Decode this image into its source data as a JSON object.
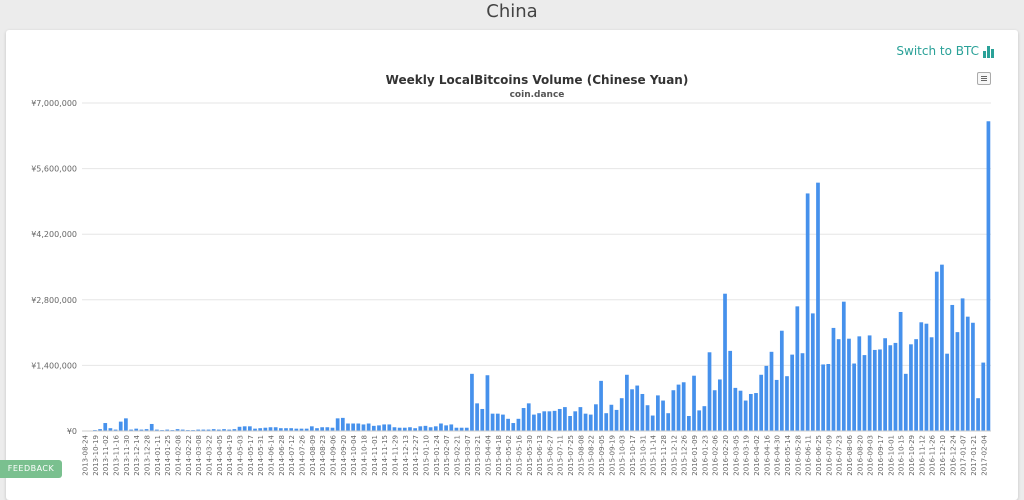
{
  "page": {
    "title": "China",
    "switch_label": "Switch to BTC",
    "feedback_label": "FEEDBACK"
  },
  "colors": {
    "bar": "#4691ec",
    "grid": "#e6e6e6",
    "accent": "#2aa198"
  },
  "icons": {
    "switch": "bar-chart-icon",
    "menu": "hamburger-menu-icon"
  },
  "chart_data": {
    "type": "bar",
    "title": "Weekly LocalBitcoins Volume (Chinese Yuan)",
    "subtitle": "coin.dance",
    "xlabel": "",
    "ylabel": "",
    "ylim": [
      0,
      7000000
    ],
    "y_ticks": [
      {
        "value": 0,
        "label": "¥0"
      },
      {
        "value": 1400000,
        "label": "¥1,400,000"
      },
      {
        "value": 2800000,
        "label": "¥2,800,000"
      },
      {
        "value": 4200000,
        "label": "¥4,200,000"
      },
      {
        "value": 5600000,
        "label": "¥5,600,000"
      },
      {
        "value": 7000000,
        "label": "¥7,000,000"
      }
    ],
    "grid": true,
    "legend": "none",
    "x_tick_every": 2,
    "categories": [
      "2013-08-24",
      "2013-10-12",
      "2013-10-19",
      "2013-10-26",
      "2013-11-02",
      "2013-11-09",
      "2013-11-16",
      "2013-11-23",
      "2013-11-30",
      "2013-12-07",
      "2013-12-14",
      "2013-12-21",
      "2013-12-28",
      "2014-01-04",
      "2014-01-11",
      "2014-01-18",
      "2014-01-25",
      "2014-02-01",
      "2014-02-08",
      "2014-02-15",
      "2014-02-22",
      "2014-03-01",
      "2014-03-08",
      "2014-03-15",
      "2014-03-22",
      "2014-03-29",
      "2014-04-05",
      "2014-04-12",
      "2014-04-19",
      "2014-04-26",
      "2014-05-03",
      "2014-05-10",
      "2014-05-17",
      "2014-05-24",
      "2014-05-31",
      "2014-06-07",
      "2014-06-14",
      "2014-06-21",
      "2014-06-28",
      "2014-07-05",
      "2014-07-12",
      "2014-07-19",
      "2014-07-26",
      "2014-08-02",
      "2014-08-09",
      "2014-08-16",
      "2014-08-23",
      "2014-08-30",
      "2014-09-06",
      "2014-09-13",
      "2014-09-20",
      "2014-09-27",
      "2014-10-04",
      "2014-10-11",
      "2014-10-18",
      "2014-10-25",
      "2014-11-01",
      "2014-11-08",
      "2014-11-15",
      "2014-11-22",
      "2014-11-29",
      "2014-12-06",
      "2014-12-13",
      "2014-12-20",
      "2014-12-27",
      "2015-01-03",
      "2015-01-10",
      "2015-01-17",
      "2015-01-24",
      "2015-01-31",
      "2015-02-07",
      "2015-02-14",
      "2015-02-21",
      "2015-02-28",
      "2015-03-07",
      "2015-03-14",
      "2015-03-21",
      "2015-03-28",
      "2015-04-04",
      "2015-04-11",
      "2015-04-18",
      "2015-04-25",
      "2015-05-02",
      "2015-05-09",
      "2015-05-16",
      "2015-05-23",
      "2015-05-30",
      "2015-06-06",
      "2015-06-13",
      "2015-06-20",
      "2015-06-27",
      "2015-07-04",
      "2015-07-11",
      "2015-07-18",
      "2015-07-25",
      "2015-08-01",
      "2015-08-08",
      "2015-08-15",
      "2015-08-22",
      "2015-08-29",
      "2015-09-05",
      "2015-09-12",
      "2015-09-19",
      "2015-09-26",
      "2015-10-03",
      "2015-10-10",
      "2015-10-17",
      "2015-10-24",
      "2015-10-31",
      "2015-11-07",
      "2015-11-14",
      "2015-11-21",
      "2015-11-28",
      "2015-12-05",
      "2015-12-12",
      "2015-12-19",
      "2015-12-26",
      "2016-01-02",
      "2016-01-09",
      "2016-01-16",
      "2016-01-23",
      "2016-01-30",
      "2016-02-06",
      "2016-02-13",
      "2016-02-20",
      "2016-02-27",
      "2016-03-05",
      "2016-03-12",
      "2016-03-19",
      "2016-03-26",
      "2016-04-02",
      "2016-04-09",
      "2016-04-16",
      "2016-04-23",
      "2016-04-30",
      "2016-05-07",
      "2016-05-14",
      "2016-05-21",
      "2016-05-28",
      "2016-06-04",
      "2016-06-11",
      "2016-06-18",
      "2016-06-25",
      "2016-07-02",
      "2016-07-09",
      "2016-07-16",
      "2016-07-23",
      "2016-07-30",
      "2016-08-06",
      "2016-08-13",
      "2016-08-20",
      "2016-08-27",
      "2016-09-03",
      "2016-09-10",
      "2016-09-17",
      "2016-09-24",
      "2016-10-01",
      "2016-10-08",
      "2016-10-15",
      "2016-10-22",
      "2016-10-29",
      "2016-11-05",
      "2016-11-12",
      "2016-11-19",
      "2016-11-26",
      "2016-12-03",
      "2016-12-10",
      "2016-12-17",
      "2016-12-24",
      "2016-12-31",
      "2017-01-07",
      "2017-01-14",
      "2017-01-21",
      "2017-01-28",
      "2017-02-04",
      "2017-02-11"
    ],
    "series": [
      {
        "values": [
          5000,
          10000,
          20000,
          40000,
          170000,
          60000,
          30000,
          200000,
          270000,
          30000,
          50000,
          30000,
          40000,
          150000,
          30000,
          20000,
          30000,
          20000,
          40000,
          30000,
          20000,
          20000,
          30000,
          30000,
          30000,
          40000,
          30000,
          40000,
          30000,
          40000,
          90000,
          100000,
          100000,
          50000,
          60000,
          70000,
          80000,
          80000,
          60000,
          60000,
          60000,
          50000,
          50000,
          50000,
          100000,
          60000,
          80000,
          80000,
          70000,
          270000,
          280000,
          160000,
          160000,
          160000,
          140000,
          160000,
          110000,
          120000,
          140000,
          140000,
          80000,
          70000,
          70000,
          80000,
          60000,
          100000,
          110000,
          80000,
          100000,
          160000,
          120000,
          140000,
          70000,
          70000,
          70000,
          1220000,
          590000,
          470000,
          1190000,
          370000,
          370000,
          350000,
          260000,
          170000,
          260000,
          490000,
          590000,
          350000,
          380000,
          420000,
          420000,
          430000,
          470000,
          510000,
          320000,
          420000,
          510000,
          370000,
          350000,
          570000,
          1070000,
          380000,
          560000,
          450000,
          700000,
          1200000,
          890000,
          970000,
          790000,
          550000,
          330000,
          760000,
          650000,
          380000,
          870000,
          990000,
          1040000,
          320000,
          1180000,
          440000,
          530000,
          1680000,
          870000,
          1100000,
          2930000,
          1710000,
          920000,
          860000,
          650000,
          790000,
          810000,
          1200000,
          1390000,
          1690000,
          1090000,
          2140000,
          1170000,
          1630000,
          2660000,
          1660000,
          5070000,
          2510000,
          5300000,
          1420000,
          1430000,
          2200000,
          1960000,
          2760000,
          1970000,
          1440000,
          2020000,
          1620000,
          2040000,
          1730000,
          1740000,
          1980000,
          1830000,
          1880000,
          2540000,
          1220000,
          1850000,
          1960000,
          2320000,
          2290000,
          2000000,
          3400000,
          3550000,
          1650000,
          2690000,
          2110000,
          2830000,
          2440000,
          2310000,
          700000,
          1460000,
          6610000
        ]
      }
    ]
  }
}
